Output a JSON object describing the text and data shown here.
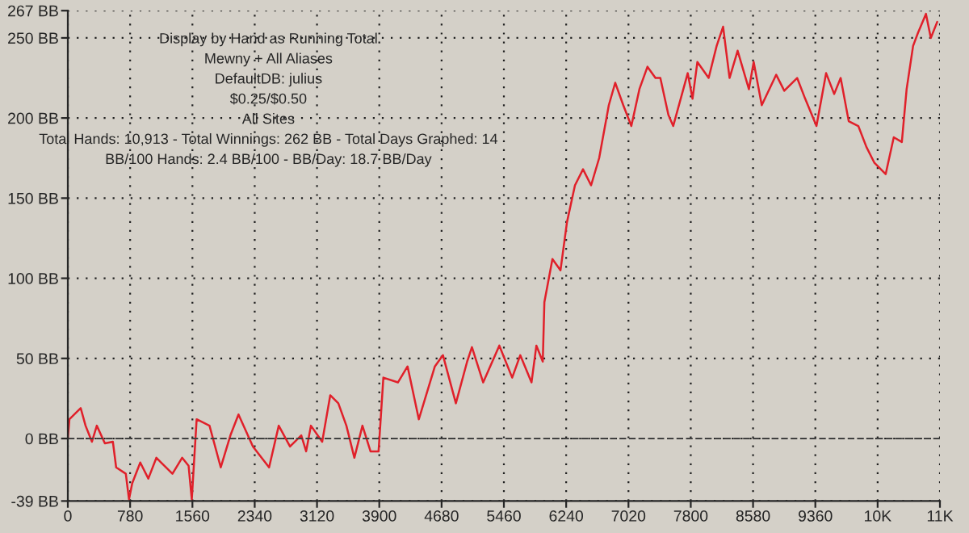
{
  "chart_data": {
    "type": "line",
    "annotations": [
      "Display by Hand as Running Total",
      "Mewny + All Aliases",
      "DefaultDB: julius",
      "$0.25/$0.50",
      "All Sites",
      "Total Hands: 10,913 - Total Winnings: 262 BB - Total Days Graphed: 14",
      "BB/100 Hands: 2.4 BB/100 - BB/Day: 18.7 BB/Day"
    ],
    "series": [
      {
        "color": "#e0202a",
        "x": [
          0,
          20,
          161,
          222,
          302,
          363,
          464,
          564,
          605,
          726,
          766,
          806,
          907,
          1008,
          1109,
          1169,
          1310,
          1431,
          1512,
          1552,
          1613,
          1774,
          1915,
          2036,
          2137,
          2318,
          2520,
          2641,
          2782,
          2923,
          2984,
          3044,
          3185,
          3286,
          3387,
          3488,
          3588,
          3689,
          3790,
          3891,
          3951,
          4133,
          4254,
          4395,
          4596,
          4697,
          4859,
          5000,
          5060,
          5201,
          5403,
          5564,
          5665,
          5806,
          5867,
          5947,
          5967,
          6068,
          6169,
          6250,
          6350,
          6451,
          6552,
          6653,
          6774,
          6854,
          6955,
          7056,
          7157,
          7258,
          7358,
          7419,
          7520,
          7580,
          7762,
          7822,
          7883,
          8024,
          8124,
          8205,
          8286,
          8387,
          8528,
          8588,
          8689,
          8870,
          8971,
          9132,
          9233,
          9374,
          9495,
          9596,
          9677,
          9778,
          9898,
          9999,
          10100,
          10241,
          10342,
          10443,
          10503,
          10584,
          10644,
          10745,
          10806,
          10886
        ],
        "values": [
          0,
          12,
          19,
          8,
          -2,
          8,
          -3,
          -2,
          -18,
          -22,
          -38,
          -28,
          -15,
          -25,
          -12,
          -15,
          -22,
          -12,
          -17,
          -38,
          12,
          8,
          -18,
          2,
          15,
          -5,
          -18,
          8,
          -5,
          2,
          -8,
          8,
          -2,
          27,
          22,
          8,
          -12,
          8,
          -8,
          -8,
          38,
          35,
          45,
          12,
          45,
          52,
          22,
          48,
          57,
          35,
          58,
          38,
          52,
          35,
          58,
          48,
          85,
          112,
          105,
          135,
          158,
          168,
          158,
          175,
          208,
          222,
          208,
          195,
          218,
          232,
          225,
          225,
          202,
          195,
          228,
          212,
          235,
          225,
          245,
          257,
          225,
          242,
          218,
          235,
          208,
          227,
          217,
          225,
          212,
          195,
          228,
          215,
          225,
          198,
          195,
          182,
          172,
          165,
          188,
          185,
          218,
          245,
          253,
          265,
          250,
          260
        ]
      }
    ],
    "xlim": [
      0,
      10920
    ],
    "xticks": [
      0,
      780,
      1560,
      2340,
      3120,
      3900,
      4680,
      5460,
      6240,
      7020,
      7800,
      8580,
      9360,
      {
        "value": 10140,
        "label": "10K"
      },
      {
        "value": 10920,
        "label": "11K"
      }
    ],
    "ylim": [
      -39,
      267
    ],
    "yticks": [
      {
        "value": -39,
        "label": "-39 BB"
      },
      {
        "value": 0,
        "label": "0 BB"
      },
      {
        "value": 50,
        "label": "50 BB"
      },
      {
        "value": 100,
        "label": "100 BB"
      },
      {
        "value": 150,
        "label": "150 BB"
      },
      {
        "value": 200,
        "label": "200 BB"
      },
      {
        "value": 250,
        "label": "250 BB"
      },
      {
        "value": 267,
        "label": "267 BB"
      }
    ],
    "grid": true,
    "ref_lines": [
      {
        "axis": "y",
        "value": 0,
        "line_style": "dashed",
        "color": "#404040"
      }
    ],
    "line_style": "solid",
    "legend": false
  }
}
